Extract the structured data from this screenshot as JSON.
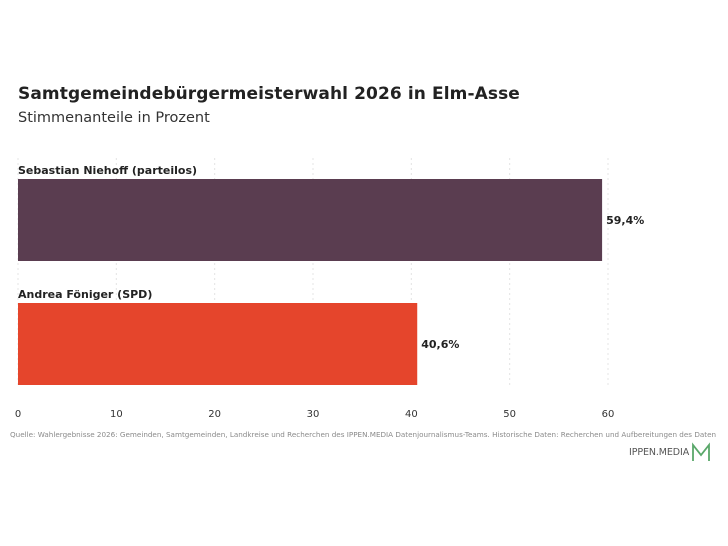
{
  "header": {
    "title": "Samtgemeindebürgermeisterwahl 2026 in Elm-Asse",
    "subtitle": "Stimmenanteile in Prozent"
  },
  "footer": {
    "source": "Quelle: Wahlergebnisse 2026: Gemeinden, Samtgemeinden, Landkreise und Recherchen des IPPEN.MEDIA Datenjournalismus-Teams. Historische Daten: Recherchen und Aufbereitungen des Daten",
    "logo_text": "IPPEN.MEDIA"
  },
  "colors": {
    "bar_1": "#5a3d50",
    "bar_2": "#e5452c",
    "logo_accent": "#5aa86a"
  },
  "chart_data": {
    "type": "bar",
    "orientation": "horizontal",
    "categories": [
      "Sebastian Niehoff (parteilos)",
      "Andrea Föniger (SPD)"
    ],
    "values": [
      59.4,
      40.6
    ],
    "value_labels": [
      "59,4%",
      "40,6%"
    ],
    "bar_colors": [
      "#5a3d50",
      "#e5452c"
    ],
    "xlim": [
      0,
      60
    ],
    "xticks": [
      0,
      10,
      20,
      30,
      40,
      50,
      60
    ],
    "grid": true
  }
}
